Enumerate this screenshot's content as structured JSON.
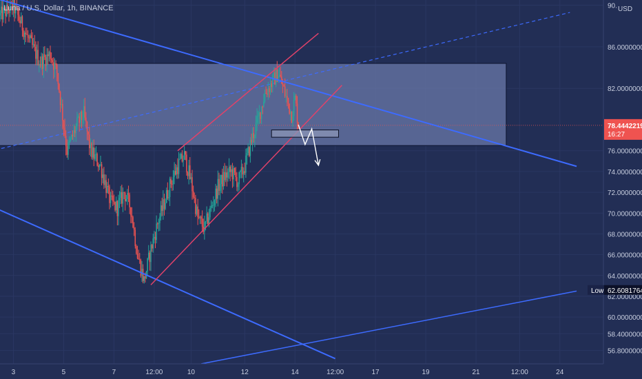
{
  "header": {
    "symbol": "Luna / U.S. Dollar, 1h, BINANCE",
    "currency": "USD"
  },
  "chart_data": {
    "type": "candlestick",
    "title": "Luna / U.S. Dollar, 1h, BINANCE",
    "currency": "USD",
    "ylim": [
      55.5,
      90.5
    ],
    "y_ticks": [
      {
        "value": 90,
        "label": "90."
      },
      {
        "value": 86,
        "label": "86.0000000"
      },
      {
        "value": 82,
        "label": "82.0000000"
      },
      {
        "value": 76,
        "label": "76.0000000"
      },
      {
        "value": 74,
        "label": "74.0000000"
      },
      {
        "value": 72,
        "label": "72.0000000"
      },
      {
        "value": 70,
        "label": "70.0000000"
      },
      {
        "value": 68,
        "label": "68.0000000"
      },
      {
        "value": 66,
        "label": "66.0000000"
      },
      {
        "value": 64,
        "label": "64.0000000"
      },
      {
        "value": 62,
        "label": "62.0000000"
      },
      {
        "value": 60,
        "label": "60.0000000"
      },
      {
        "value": 58.4,
        "label": "58.4000000"
      },
      {
        "value": 56.8,
        "label": "56.8000000"
      }
    ],
    "x_ticks": [
      "3",
      "5",
      "7",
      "12:00",
      "10",
      "12",
      "14",
      "12:00",
      "17",
      "19",
      "21",
      "12:00",
      "24"
    ],
    "current_price": {
      "value": 78.4442219,
      "label": "78.4442219",
      "countdown": "16:27",
      "color": "#ef5350"
    },
    "low_marker": {
      "label": "Low",
      "value": 62.6081764,
      "value_label": "62.6081764"
    },
    "colors": {
      "background": "#222e55",
      "up": "#26a69a",
      "down": "#ef5350",
      "channel": "#3d6bff",
      "rising_channel": "#e0426a",
      "zone_fill": "#6a78a8",
      "annotation": "#ffffff"
    },
    "price_path": [
      [
        0,
        89.0
      ],
      [
        4,
        89.9
      ],
      [
        8,
        87.0
      ],
      [
        12,
        84.5
      ],
      [
        15,
        85.3
      ],
      [
        17,
        83.5
      ],
      [
        20,
        76.0
      ],
      [
        23,
        78.5
      ],
      [
        25,
        79.5
      ],
      [
        27,
        76.0
      ],
      [
        30,
        74.5
      ],
      [
        33,
        71.0
      ],
      [
        35,
        70.5
      ],
      [
        37,
        72.0
      ],
      [
        39,
        70.5
      ],
      [
        41,
        66.0
      ],
      [
        43,
        63.5
      ],
      [
        45,
        66.5
      ],
      [
        47,
        69.0
      ],
      [
        49,
        71.0
      ],
      [
        51,
        73.0
      ],
      [
        53,
        74.5
      ],
      [
        55,
        75.5
      ],
      [
        57,
        73.0
      ],
      [
        59,
        69.5
      ],
      [
        61,
        68.5
      ],
      [
        63,
        70.5
      ],
      [
        65,
        72.5
      ],
      [
        67,
        73.5
      ],
      [
        69,
        74.0
      ],
      [
        71,
        73.0
      ],
      [
        73,
        74.5
      ],
      [
        75,
        77.0
      ],
      [
        77,
        79.0
      ],
      [
        79,
        81.5
      ],
      [
        81,
        82.5
      ],
      [
        83,
        83.5
      ],
      [
        85,
        81.5
      ],
      [
        87,
        79.5
      ],
      [
        88,
        81.0
      ],
      [
        89,
        78.5
      ]
    ],
    "candle_steps_per_unit": 3,
    "dates_axis": {
      "start": 0,
      "end": 180,
      "tick_positions": [
        4,
        19,
        34,
        46,
        57,
        73,
        88,
        100,
        112,
        127,
        142,
        155,
        167
      ]
    },
    "drawings": {
      "upper_channel": [
        [
          -5,
          91.0
        ],
        [
          172,
          74.5
        ]
      ],
      "lower_channel": [
        [
          -5,
          71.0
        ],
        [
          100,
          56.0
        ]
      ],
      "bottom_support": [
        [
          60,
          55.5
        ],
        [
          172,
          62.5
        ]
      ],
      "rising_upper": [
        [
          53,
          76.0
        ],
        [
          95,
          87.3
        ]
      ],
      "rising_lower": [
        [
          45,
          63.1
        ],
        [
          102,
          82.3
        ]
      ],
      "dashed_trend": [
        [
          -5,
          75.8
        ],
        [
          170,
          89.3
        ]
      ],
      "zone": {
        "x0": -5,
        "x1": 151,
        "y_top": 84.4,
        "y_bottom": 76.5
      },
      "small_box": {
        "x0": 81,
        "x1": 101,
        "y_top": 78.0,
        "y_bottom": 77.3
      },
      "projection": [
        [
          89,
          78.5
        ],
        [
          91,
          76.6
        ],
        [
          93,
          78.1
        ],
        [
          95,
          74.6
        ]
      ]
    }
  }
}
